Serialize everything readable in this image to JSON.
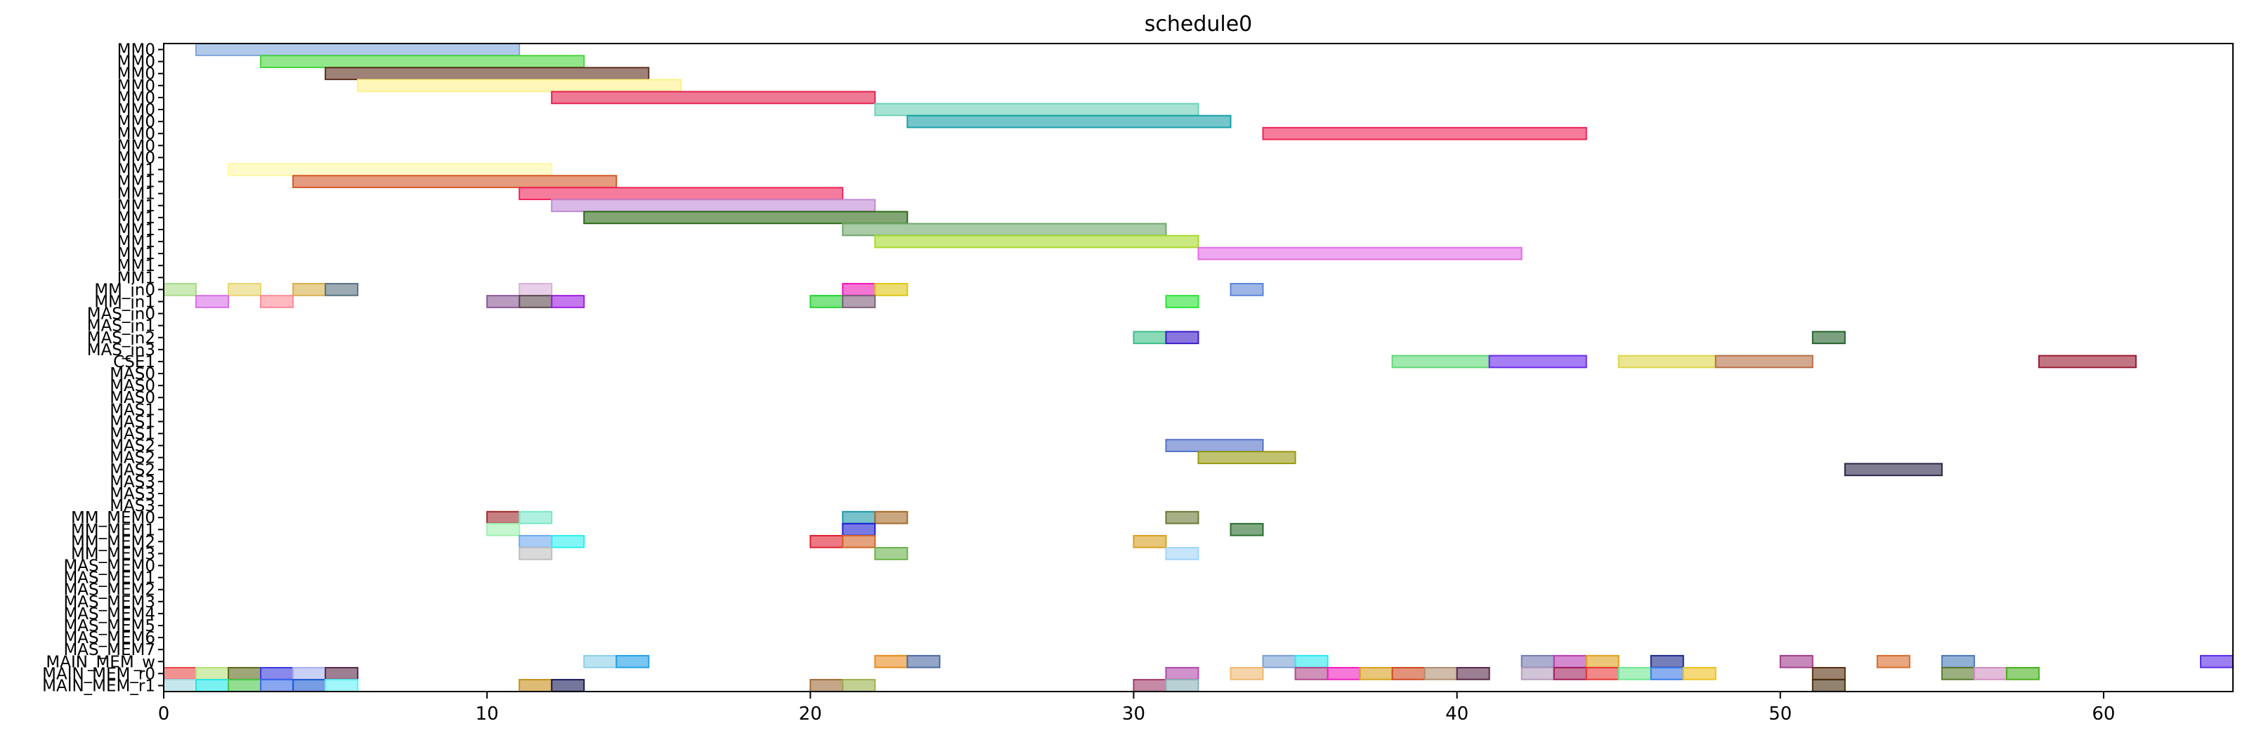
{
  "chart_data": {
    "type": "gantt",
    "title": "schedule0",
    "xlabel": "",
    "ylabel": "",
    "xlim": [
      0,
      64
    ],
    "x_ticks": [
      0,
      10,
      20,
      30,
      40,
      50,
      60
    ],
    "grid": false,
    "legend": "none",
    "rows": [
      "MM0",
      "MM0",
      "MM0",
      "MM0",
      "MM0",
      "MM0",
      "MM0",
      "MM0",
      "MM0",
      "MM0",
      "MM1",
      "MM1",
      "MM1",
      "MM1",
      "MM1",
      "MM1",
      "MM1",
      "MM1",
      "MM1",
      "MM1",
      "MM_in0",
      "MM_in1",
      "MAS_in0",
      "MAS_in1",
      "MAS_in2",
      "MAS_in3",
      "CSE1",
      "MAS0",
      "MAS0",
      "MAS0",
      "MAS1",
      "MAS1",
      "MAS1",
      "MAS2",
      "MAS2",
      "MAS2",
      "MAS3",
      "MAS3",
      "MAS3",
      "MM_MEM0",
      "MM_MEM1",
      "MM_MEM2",
      "MM_MEM3",
      "MAS_MEM0",
      "MAS_MEM1",
      "MAS_MEM2",
      "MAS_MEM3",
      "MAS_MEM4",
      "MAS_MEM5",
      "MAS_MEM6",
      "MAS_MEM7",
      "MAIN_MEM_w",
      "MAIN_MEM_r0",
      "MAIN_MEM_r1"
    ],
    "tasks": [
      {
        "row": 0,
        "start": 1,
        "end": 11,
        "color": "#7fa6dc"
      },
      {
        "row": 1,
        "start": 3,
        "end": 13,
        "color": "#49d63f"
      },
      {
        "row": 2,
        "start": 5,
        "end": 15,
        "color": "#5e2f1e"
      },
      {
        "row": 3,
        "start": 6,
        "end": 16,
        "color": "#fcf18c"
      },
      {
        "row": 4,
        "start": 12,
        "end": 22,
        "color": "#e5224f"
      },
      {
        "row": 5,
        "start": 22,
        "end": 32,
        "color": "#6dd1b8"
      },
      {
        "row": 6,
        "start": 23,
        "end": 33,
        "color": "#17a0a7"
      },
      {
        "row": 7,
        "start": 34,
        "end": 44,
        "color": "#ee2456"
      },
      {
        "row": 10,
        "start": 2,
        "end": 12,
        "color": "#fdf9a8"
      },
      {
        "row": 11,
        "start": 4,
        "end": 14,
        "color": "#d4592a"
      },
      {
        "row": 12,
        "start": 11,
        "end": 21,
        "color": "#ef255b"
      },
      {
        "row": 13,
        "start": 12,
        "end": 22,
        "color": "#c08bd4"
      },
      {
        "row": 14,
        "start": 13,
        "end": 23,
        "color": "#2d6a16"
      },
      {
        "row": 15,
        "start": 21,
        "end": 31,
        "color": "#6fa86c"
      },
      {
        "row": 16,
        "start": 22,
        "end": 32,
        "color": "#a7da2c"
      },
      {
        "row": 17,
        "start": 32,
        "end": 42,
        "color": "#e56ce4"
      },
      {
        "row": 20,
        "start": 0,
        "end": 1,
        "color": "#a9dc88"
      },
      {
        "row": 20,
        "start": 2,
        "end": 3,
        "color": "#e8d56f"
      },
      {
        "row": 20,
        "start": 4,
        "end": 5,
        "color": "#d8b14d"
      },
      {
        "row": 20,
        "start": 5,
        "end": 6,
        "color": "#5a7281"
      },
      {
        "row": 20,
        "start": 11,
        "end": 12,
        "color": "#d8b3d8"
      },
      {
        "row": 20,
        "start": 21,
        "end": 22,
        "color": "#ee19b8"
      },
      {
        "row": 20,
        "start": 22,
        "end": 23,
        "color": "#e0c614"
      },
      {
        "row": 20,
        "start": 33,
        "end": 34,
        "color": "#5b86d6"
      },
      {
        "row": 21,
        "start": 1,
        "end": 2,
        "color": "#d970e8"
      },
      {
        "row": 21,
        "start": 3,
        "end": 4,
        "color": "#ff8a98"
      },
      {
        "row": 21,
        "start": 10,
        "end": 11,
        "color": "#8a5896"
      },
      {
        "row": 21,
        "start": 11,
        "end": 12,
        "color": "#5e4a52"
      },
      {
        "row": 21,
        "start": 12,
        "end": 13,
        "color": "#9e1ee3"
      },
      {
        "row": 21,
        "start": 20,
        "end": 21,
        "color": "#27d335"
      },
      {
        "row": 21,
        "start": 21,
        "end": 22,
        "color": "#7e5f7a"
      },
      {
        "row": 21,
        "start": 31,
        "end": 32,
        "color": "#2ae434"
      },
      {
        "row": 24,
        "start": 30,
        "end": 31,
        "color": "#3cbf8a"
      },
      {
        "row": 24,
        "start": 31,
        "end": 32,
        "color": "#3a1cc9"
      },
      {
        "row": 24,
        "start": 51,
        "end": 52,
        "color": "#25632d"
      },
      {
        "row": 26,
        "start": 38,
        "end": 41,
        "color": "#5fd878"
      },
      {
        "row": 26,
        "start": 41,
        "end": 44,
        "color": "#6a2aec"
      },
      {
        "row": 26,
        "start": 45,
        "end": 48,
        "color": "#dcd64c"
      },
      {
        "row": 26,
        "start": 48,
        "end": 51,
        "color": "#b87048"
      },
      {
        "row": 26,
        "start": 58,
        "end": 61,
        "color": "#9a1a30"
      },
      {
        "row": 33,
        "start": 31,
        "end": 34,
        "color": "#5472c8"
      },
      {
        "row": 34,
        "start": 32,
        "end": 35,
        "color": "#989a10"
      },
      {
        "row": 35,
        "start": 52,
        "end": 55,
        "color": "#2c2447"
      },
      {
        "row": 39,
        "start": 10,
        "end": 11,
        "color": "#a02a2c"
      },
      {
        "row": 39,
        "start": 11,
        "end": 12,
        "color": "#78e8c8"
      },
      {
        "row": 39,
        "start": 21,
        "end": 22,
        "color": "#1c97a8"
      },
      {
        "row": 39,
        "start": 22,
        "end": 23,
        "color": "#a56a2a"
      },
      {
        "row": 39,
        "start": 31,
        "end": 32,
        "color": "#6a7a36"
      },
      {
        "row": 40,
        "start": 10,
        "end": 11,
        "color": "#a0f0b0"
      },
      {
        "row": 40,
        "start": 21,
        "end": 22,
        "color": "#1e20d2"
      },
      {
        "row": 40,
        "start": 33,
        "end": 34,
        "color": "#2a6e2e"
      },
      {
        "row": 41,
        "start": 11,
        "end": 12,
        "color": "#6eaaf0"
      },
      {
        "row": 41,
        "start": 12,
        "end": 13,
        "color": "#2ef0f0"
      },
      {
        "row": 41,
        "start": 20,
        "end": 21,
        "color": "#e02030"
      },
      {
        "row": 41,
        "start": 21,
        "end": 22,
        "color": "#d46428"
      },
      {
        "row": 41,
        "start": 30,
        "end": 31,
        "color": "#d8a020"
      },
      {
        "row": 42,
        "start": 11,
        "end": 12,
        "color": "#c0c0c0"
      },
      {
        "row": 42,
        "start": 22,
        "end": 23,
        "color": "#6ab24a"
      },
      {
        "row": 42,
        "start": 31,
        "end": 32,
        "color": "#a0d4f8"
      },
      {
        "row": 51,
        "start": 13,
        "end": 14,
        "color": "#8cd0ea"
      },
      {
        "row": 51,
        "start": 14,
        "end": 15,
        "color": "#22a0ea"
      },
      {
        "row": 51,
        "start": 22,
        "end": 23,
        "color": "#e88c20"
      },
      {
        "row": 51,
        "start": 23,
        "end": 24,
        "color": "#4c6aa4"
      },
      {
        "row": 51,
        "start": 34,
        "end": 35,
        "color": "#7aa0d4"
      },
      {
        "row": 51,
        "start": 35,
        "end": 36,
        "color": "#2ee8f0"
      },
      {
        "row": 51,
        "start": 42,
        "end": 43,
        "color": "#7478b0"
      },
      {
        "row": 51,
        "start": 43,
        "end": 44,
        "color": "#b83cb0"
      },
      {
        "row": 51,
        "start": 44,
        "end": 45,
        "color": "#e0a020"
      },
      {
        "row": 51,
        "start": 46,
        "end": 47,
        "color": "#1a2a8a"
      },
      {
        "row": 51,
        "start": 50,
        "end": 51,
        "color": "#a03c8c"
      },
      {
        "row": 51,
        "start": 53,
        "end": 54,
        "color": "#d86c2c"
      },
      {
        "row": 51,
        "start": 55,
        "end": 56,
        "color": "#4a7ab8"
      },
      {
        "row": 51,
        "start": 63,
        "end": 64,
        "color": "#5a2ae8"
      },
      {
        "row": 52,
        "start": 0,
        "end": 1,
        "color": "#e84a4a"
      },
      {
        "row": 52,
        "start": 1,
        "end": 2,
        "color": "#b6e07a"
      },
      {
        "row": 52,
        "start": 2,
        "end": 3,
        "color": "#5e6a1e"
      },
      {
        "row": 52,
        "start": 3,
        "end": 4,
        "color": "#3a3ae0"
      },
      {
        "row": 52,
        "start": 4,
        "end": 5,
        "color": "#a8b0f0"
      },
      {
        "row": 52,
        "start": 5,
        "end": 6,
        "color": "#5a2a4a"
      },
      {
        "row": 52,
        "start": 31,
        "end": 32,
        "color": "#b04aa8"
      },
      {
        "row": 52,
        "start": 33,
        "end": 34,
        "color": "#f0b870"
      },
      {
        "row": 52,
        "start": 35,
        "end": 36,
        "color": "#b04a8a"
      },
      {
        "row": 52,
        "start": 36,
        "end": 37,
        "color": "#f020c0"
      },
      {
        "row": 52,
        "start": 37,
        "end": 38,
        "color": "#d8a020"
      },
      {
        "row": 52,
        "start": 38,
        "end": 39,
        "color": "#d04a20"
      },
      {
        "row": 52,
        "start": 39,
        "end": 40,
        "color": "#b09070"
      },
      {
        "row": 52,
        "start": 40,
        "end": 41,
        "color": "#5a2a4a"
      },
      {
        "row": 52,
        "start": 42,
        "end": 43,
        "color": "#b49cbc"
      },
      {
        "row": 52,
        "start": 43,
        "end": 44,
        "color": "#a0205a"
      },
      {
        "row": 52,
        "start": 44,
        "end": 45,
        "color": "#e83a3a"
      },
      {
        "row": 52,
        "start": 45,
        "end": 46,
        "color": "#6ee890"
      },
      {
        "row": 52,
        "start": 46,
        "end": 47,
        "color": "#3a7ae8"
      },
      {
        "row": 52,
        "start": 47,
        "end": 48,
        "color": "#f0c020"
      },
      {
        "row": 52,
        "start": 51,
        "end": 52,
        "color": "#5a3010"
      },
      {
        "row": 52,
        "start": 55,
        "end": 56,
        "color": "#5a7a2a"
      },
      {
        "row": 52,
        "start": 56,
        "end": 57,
        "color": "#d090c0"
      },
      {
        "row": 52,
        "start": 57,
        "end": 58,
        "color": "#4ab020"
      },
      {
        "row": 53,
        "start": 0,
        "end": 1,
        "color": "#a0d8e0"
      },
      {
        "row": 53,
        "start": 1,
        "end": 2,
        "color": "#20e8e8"
      },
      {
        "row": 53,
        "start": 2,
        "end": 3,
        "color": "#4ac84a"
      },
      {
        "row": 53,
        "start": 3,
        "end": 4,
        "color": "#3a6ae8"
      },
      {
        "row": 53,
        "start": 4,
        "end": 5,
        "color": "#1a5ad0"
      },
      {
        "row": 53,
        "start": 5,
        "end": 6,
        "color": "#60f0f8"
      },
      {
        "row": 53,
        "start": 11,
        "end": 12,
        "color": "#c8901a"
      },
      {
        "row": 53,
        "start": 12,
        "end": 13,
        "color": "#1a1a5a"
      },
      {
        "row": 53,
        "start": 20,
        "end": 21,
        "color": "#a06a3a"
      },
      {
        "row": 53,
        "start": 21,
        "end": 22,
        "color": "#9ab04a"
      },
      {
        "row": 53,
        "start": 30,
        "end": 31,
        "color": "#a03a6a"
      },
      {
        "row": 53,
        "start": 31,
        "end": 32,
        "color": "#8ab0b8"
      },
      {
        "row": 53,
        "start": 51,
        "end": 52,
        "color": "#4a3010"
      }
    ]
  }
}
